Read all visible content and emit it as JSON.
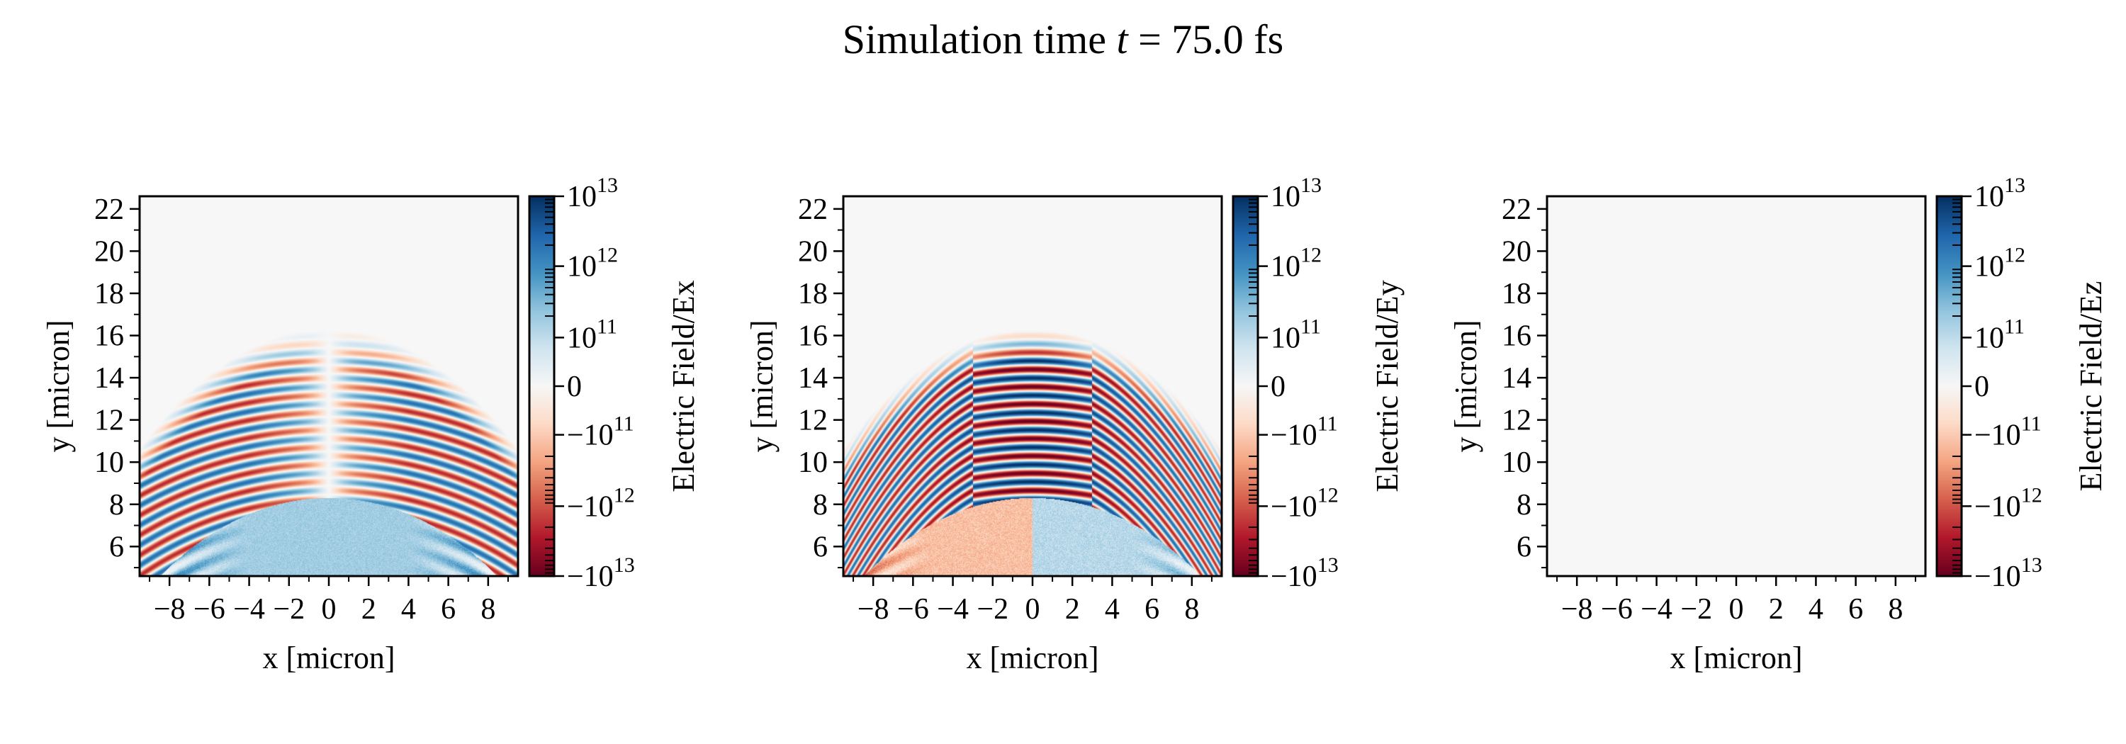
{
  "title": {
    "prefix": "Simulation time",
    "var": "t",
    "suffix": "= 75.0 fs"
  },
  "chart_data": [
    {
      "type": "heatmap",
      "xlabel": "x [micron]",
      "ylabel": "y [micron]",
      "xlim": [
        -9.5,
        9.5
      ],
      "ylim": [
        4.6,
        22.6
      ],
      "xticks": [
        -8,
        -6,
        -4,
        -2,
        0,
        2,
        4,
        6,
        8
      ],
      "xtick_labels": [
        "−8",
        "−6",
        "−4",
        "−2",
        "0",
        "2",
        "4",
        "6",
        "8"
      ],
      "yticks": [
        6,
        8,
        10,
        12,
        14,
        16,
        18,
        20,
        22
      ],
      "ytick_labels": [
        "6",
        "8",
        "10",
        "12",
        "14",
        "16",
        "18",
        "20",
        "22"
      ],
      "colormap": "RdBu",
      "colorbar": {
        "label": "Electric Field/Ex",
        "scale": "symlog",
        "range": [
          -10000000000000.0,
          10000000000000.0
        ],
        "ticks": [
          "10^13",
          "10^12",
          "10^11",
          "0",
          "−10^11",
          "−10^12",
          "−10^13"
        ]
      },
      "field": "Ex",
      "pattern": "antisymmetric wavefronts, light-blue region below y≈8"
    },
    {
      "type": "heatmap",
      "xlabel": "x [micron]",
      "ylabel": "y [micron]",
      "xlim": [
        -9.5,
        9.5
      ],
      "ylim": [
        4.6,
        22.6
      ],
      "xticks": [
        -8,
        -6,
        -4,
        -2,
        0,
        2,
        4,
        6,
        8
      ],
      "xtick_labels": [
        "−8",
        "−6",
        "−4",
        "−2",
        "0",
        "2",
        "4",
        "6",
        "8"
      ],
      "yticks": [
        6,
        8,
        10,
        12,
        14,
        16,
        18,
        20,
        22
      ],
      "ytick_labels": [
        "6",
        "8",
        "10",
        "12",
        "14",
        "16",
        "18",
        "20",
        "22"
      ],
      "colormap": "RdBu",
      "colorbar": {
        "label": "Electric Field/Ey",
        "scale": "symlog",
        "range": [
          -10000000000000.0,
          10000000000000.0
        ],
        "ticks": [
          "10^13",
          "10^12",
          "10^11",
          "0",
          "−10^11",
          "−10^12",
          "−10^13"
        ]
      },
      "field": "Ey",
      "pattern": "strong symmetric wavefronts, wave top y≈16"
    },
    {
      "type": "heatmap",
      "xlabel": "x [micron]",
      "ylabel": "y [micron]",
      "xlim": [
        -9.5,
        9.5
      ],
      "ylim": [
        4.6,
        22.6
      ],
      "xticks": [
        -8,
        -6,
        -4,
        -2,
        0,
        2,
        4,
        6,
        8
      ],
      "xtick_labels": [
        "−8",
        "−6",
        "−4",
        "−2",
        "0",
        "2",
        "4",
        "6",
        "8"
      ],
      "yticks": [
        6,
        8,
        10,
        12,
        14,
        16,
        18,
        20,
        22
      ],
      "ytick_labels": [
        "6",
        "8",
        "10",
        "12",
        "14",
        "16",
        "18",
        "20",
        "22"
      ],
      "colormap": "RdBu",
      "colorbar": {
        "label": "Electric Field/Ez",
        "scale": "symlog",
        "range": [
          -10000000000000.0,
          10000000000000.0
        ],
        "ticks": [
          "10^13",
          "10^12",
          "10^11",
          "0",
          "−10^11",
          "−10^12",
          "−10^13"
        ]
      },
      "field": "Ez",
      "pattern": "uniform zero"
    }
  ]
}
